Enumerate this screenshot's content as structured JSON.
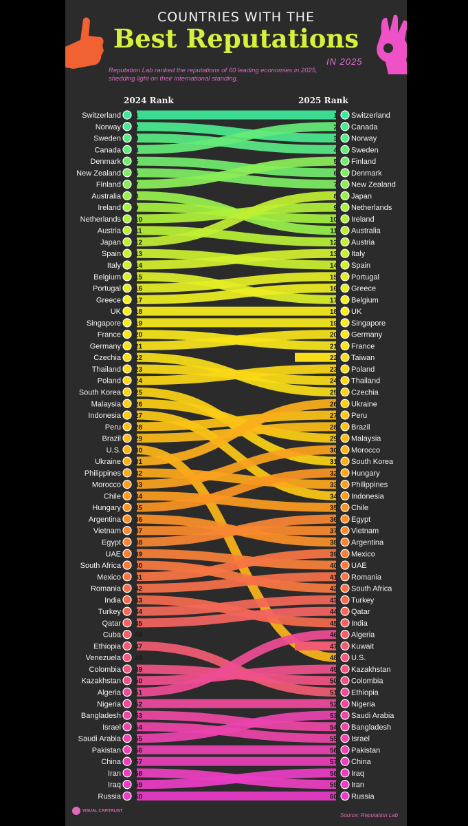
{
  "header": {
    "title_top": "COUNTRIES WITH THE",
    "title_main": "Best Reputations",
    "title_year": "IN 2025",
    "subtitle": "Reputation Lab ranked the reputations of 60 leading economies in 2025, shedding light on their international standing."
  },
  "footer": {
    "source": "Source: Reputation Lab",
    "logo": "VISUAL CAPITALIST"
  },
  "chart_data": {
    "type": "slope",
    "left_label": "2024 Rank",
    "right_label": "2025 Rank",
    "rankings_2024": [
      "Switzerland",
      "Norway",
      "Sweden",
      "Canada",
      "Denmark",
      "New Zealand",
      "Finland",
      "Australia",
      "Ireland",
      "Netherlands",
      "Austria",
      "Japan",
      "Spain",
      "Italy",
      "Belgium",
      "Portugal",
      "Greece",
      "UK",
      "Singapore",
      "France",
      "Germany",
      "Czechia",
      "Thailand",
      "Poland",
      "South Korea",
      "Malaysia",
      "Indonesia",
      "Peru",
      "Brazil",
      "U.S.",
      "Ukraine",
      "Philippines",
      "Morocco",
      "Chile",
      "Hungary",
      "Argentina",
      "Vietnam",
      "Egypt",
      "UAE",
      "South Africa",
      "Mexico",
      "Romania",
      "India",
      "Turkey",
      "Qatar",
      "Cuba",
      "Ethiopia",
      "Venezuela",
      "Colombia",
      "Kazakhstan",
      "Algeria",
      "Nigeria",
      "Bangladesh",
      "Israel",
      "Saudi Arabia",
      "Pakistan",
      "China",
      "Iran",
      "Iraq",
      "Russia"
    ],
    "rankings_2025": [
      "Switzerland",
      "Canada",
      "Norway",
      "Sweden",
      "Finland",
      "Denmark",
      "New Zealand",
      "Japan",
      "Netherlands",
      "Ireland",
      "Australia",
      "Austria",
      "Italy",
      "Spain",
      "Portugal",
      "Greece",
      "Belgium",
      "UK",
      "Singapore",
      "Germany",
      "France",
      "Taiwan",
      "Poland",
      "Thailand",
      "Czechia",
      "Ukraine",
      "Peru",
      "Brazil",
      "Malaysia",
      "Morocco",
      "South Korea",
      "Hungary",
      "Philippines",
      "Indonesia",
      "Chile",
      "Egypt",
      "Vietnam",
      "Argentina",
      "Mexico",
      "UAE",
      "Romania",
      "South Africa",
      "Turkey",
      "Qatar",
      "India",
      "Algeria",
      "Kuwait",
      "U.S.",
      "Kazakhstan",
      "Colombia",
      "Ethiopia",
      "Nigeria",
      "Saudi Arabia",
      "Bangladesh",
      "Israel",
      "Pakistan",
      "China",
      "Iraq",
      "Iran",
      "Russia"
    ],
    "colors": [
      "#3ee89a",
      "#aaf03c",
      "#f6ee1e",
      "#fbcd14",
      "#fb9620",
      "#f46a50",
      "#ee4a9a",
      "#ea3aca"
    ]
  }
}
